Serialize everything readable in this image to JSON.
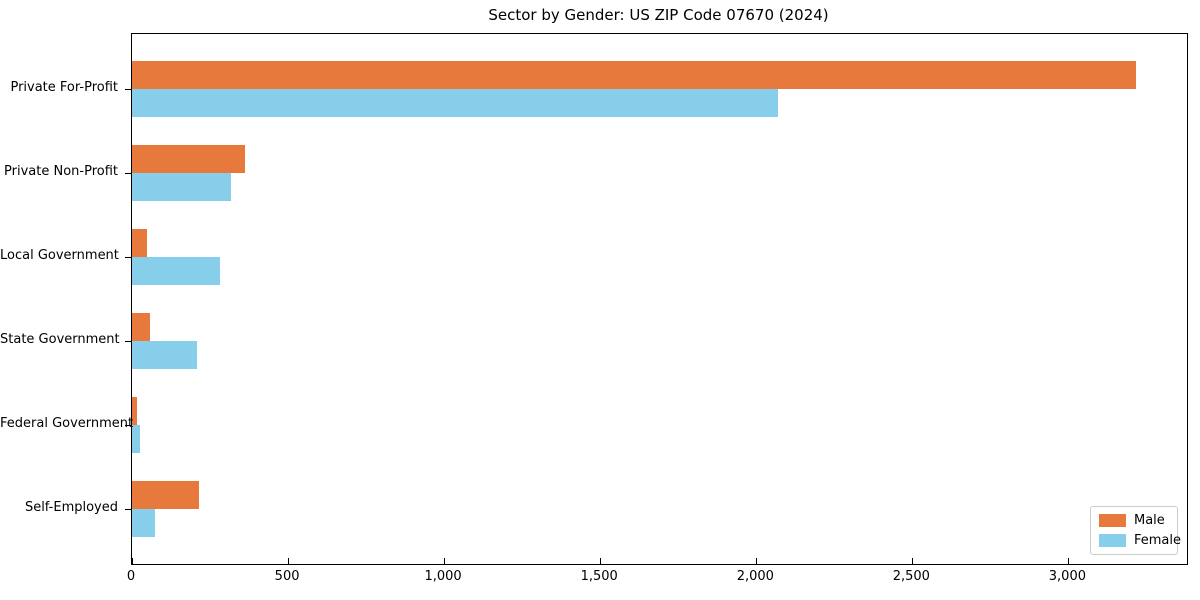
{
  "chart_data": {
    "type": "bar",
    "orientation": "horizontal",
    "title": "Sector by Gender: US ZIP Code 07670 (2024)",
    "categories": [
      "Private For-Profit",
      "Private Non-Profit",
      "Local Government",
      "State Government",
      "Federal Government",
      "Self-Employed"
    ],
    "series": [
      {
        "name": "Male",
        "color": "#e8793c",
        "values": [
          3215,
          362,
          48,
          58,
          16,
          215
        ]
      },
      {
        "name": "Female",
        "color": "#87ceeb",
        "values": [
          2070,
          318,
          282,
          208,
          26,
          74
        ]
      }
    ],
    "xlabel": "",
    "ylabel": "",
    "xlim": [
      0,
      3380
    ],
    "xticks": [
      0,
      500,
      1000,
      1500,
      2000,
      2500,
      3000
    ],
    "xtick_labels": [
      "0",
      "500",
      "1,000",
      "1,500",
      "2,000",
      "2,500",
      "3,000"
    ],
    "grid": false,
    "legend_position": "lower right",
    "legend_entries": [
      "Male",
      "Female"
    ]
  }
}
